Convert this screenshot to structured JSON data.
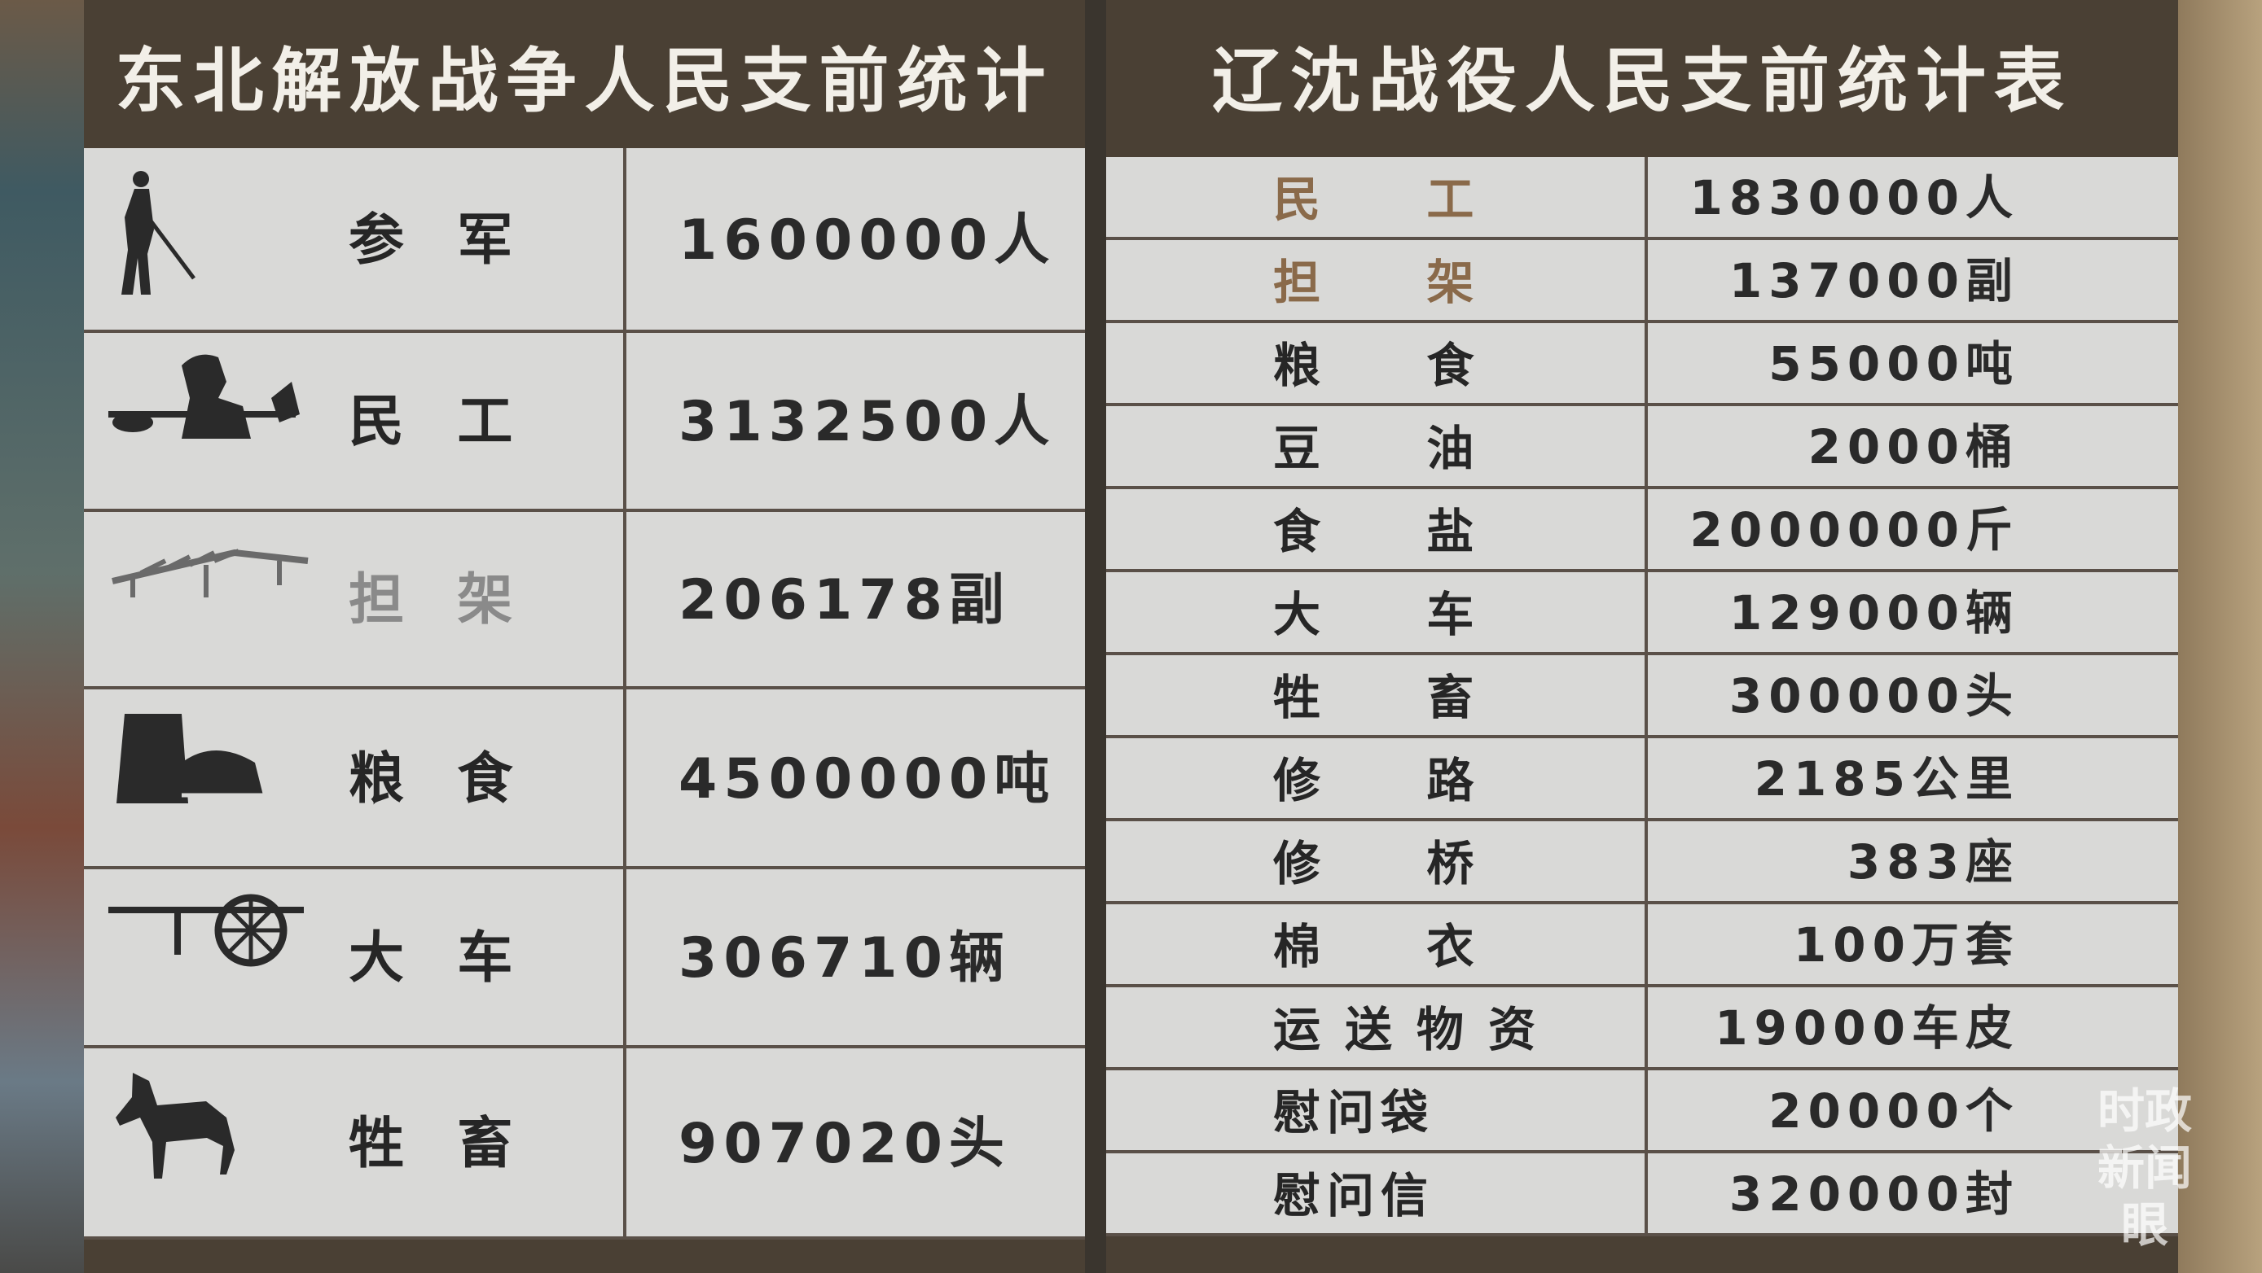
{
  "left_board": {
    "title": "东北解放战争人民支前统计",
    "rows": [
      {
        "icon": "soldier-icon",
        "label": "参  军",
        "value": "1600000人"
      },
      {
        "icon": "laborer-icon",
        "label": "民  工",
        "value": "3132500人"
      },
      {
        "icon": "stretcher-icon",
        "label": "担  架",
        "value": "206178副"
      },
      {
        "icon": "grain-sack-icon",
        "label": "粮  食",
        "value": "4500000吨"
      },
      {
        "icon": "cart-icon",
        "label": "大  车",
        "value": "306710辆"
      },
      {
        "icon": "horse-icon",
        "label": "牲  畜",
        "value": "907020头"
      }
    ]
  },
  "right_board": {
    "title": "辽沈战役人民支前统计表",
    "rows": [
      {
        "label": "民  工",
        "value": "1830000人"
      },
      {
        "label": "担  架",
        "value": "137000副"
      },
      {
        "label": "粮  食",
        "value": "55000吨"
      },
      {
        "label": "豆  油",
        "value": "2000桶"
      },
      {
        "label": "食  盐",
        "value": "2000000斤"
      },
      {
        "label": "大  车",
        "value": "129000辆"
      },
      {
        "label": "牲  畜",
        "value": "300000头"
      },
      {
        "label": "修  路",
        "value": "2185公里"
      },
      {
        "label": "修  桥",
        "value": "383座"
      },
      {
        "label": "棉  衣",
        "value": "100万套"
      },
      {
        "label": "运送物资",
        "value": "19000车皮"
      },
      {
        "label": "慰问袋",
        "value": "20000个"
      },
      {
        "label": "慰问信",
        "value": "320000封"
      }
    ]
  },
  "watermark": "时政新闻眼",
  "colors": {
    "header": "#4a4034",
    "cell": "#d9d9d7",
    "text": "#262626",
    "highlight_label": "#8a6a4a"
  }
}
